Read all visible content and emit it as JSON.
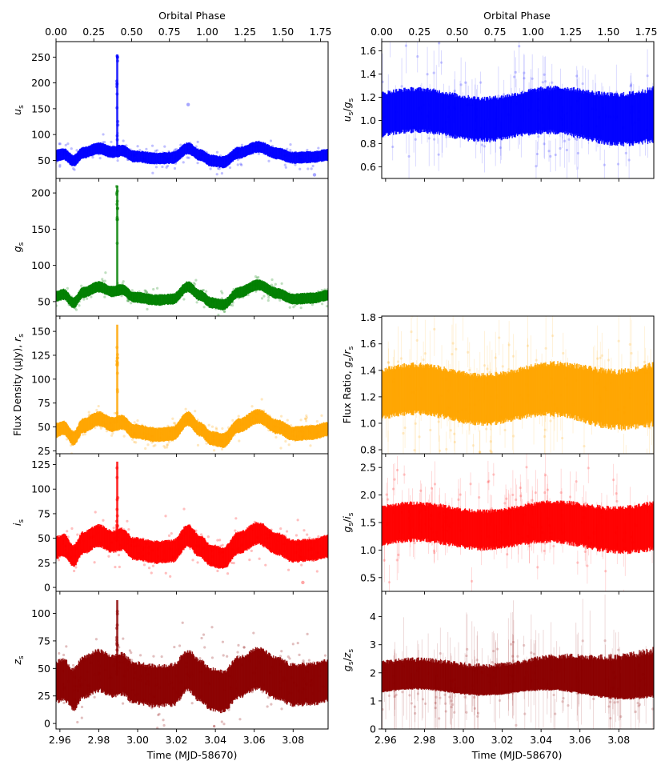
{
  "chart_data": {
    "type": "scatter",
    "x_label": "Time (MJD-58670)",
    "top_x_label": "Orbital Phase",
    "x_ticks": [
      "2.96",
      "2.98",
      "3.00",
      "3.02",
      "3.04",
      "3.06",
      "3.08"
    ],
    "xlim": [
      2.958,
      3.098
    ],
    "top_ticks": [
      "0.00",
      "0.25",
      "0.50",
      "0.75",
      "1.00",
      "1.25",
      "1.50",
      "1.75"
    ],
    "top_xlim": [
      0.0,
      1.8
    ],
    "shared_ylabel": "Flux Density (μJy), ",
    "flux_panels": [
      {
        "name": "u_s",
        "label_main": "u",
        "label_sub": "s",
        "color": "#0000ff",
        "ylim": [
          15,
          280
        ],
        "yticks": [
          50,
          100,
          150,
          200,
          250
        ],
        "baseline": 62,
        "amp": 14,
        "noise": 6,
        "flare_peak": 255,
        "outliers": [
          [
            3.026,
            158
          ],
          [
            3.091,
            22
          ]
        ]
      },
      {
        "name": "g_s",
        "label_main": "g",
        "label_sub": "s",
        "color": "#008000",
        "ylim": [
          30,
          220
        ],
        "yticks": [
          50,
          100,
          150,
          200
        ],
        "baseline": 60,
        "amp": 13,
        "noise": 4,
        "flare_peak": 210,
        "outliers": []
      },
      {
        "name": "r_s",
        "label_main": "r",
        "label_sub": "s",
        "color": "#ffa500",
        "ylim": [
          22,
          166
        ],
        "yticks": [
          25,
          50,
          75,
          100,
          125,
          150
        ],
        "baseline": 49,
        "amp": 12,
        "noise": 4,
        "flare_peak": 157,
        "outliers": []
      },
      {
        "name": "i_s",
        "label_main": "i",
        "label_sub": "s",
        "color": "#ff0000",
        "ylim": [
          -4,
          136
        ],
        "yticks": [
          0,
          25,
          50,
          75,
          100,
          125
        ],
        "baseline": 43,
        "amp": 12,
        "noise": 6,
        "flare_peak": 128,
        "outliers": [
          [
            3.085,
            5
          ]
        ]
      },
      {
        "name": "z_s",
        "label_main": "z",
        "label_sub": "s",
        "color": "#8b0000",
        "ylim": [
          -5,
          120
        ],
        "yticks": [
          0,
          25,
          50,
          75,
          100
        ],
        "baseline": 40,
        "amp": 10,
        "noise": 10,
        "flare_peak": 112,
        "outliers": []
      }
    ],
    "ratio_panels": [
      {
        "name": "u_s/g_s",
        "label_pre": "",
        "num_main": "u",
        "den_main": "g",
        "sub": "s",
        "color": "#0000ff",
        "ylim": [
          0.5,
          1.68
        ],
        "yticks": [
          "0.6",
          "0.8",
          "1.0",
          "1.2",
          "1.4",
          "1.6"
        ],
        "center": 1.05,
        "spread": 0.16
      },
      {
        "name": "g_s/r_s",
        "label_pre": "Flux Ratio, ",
        "num_main": "g",
        "den_main": "r",
        "sub": "s",
        "color": "#ffa500",
        "ylim": [
          0.77,
          1.81
        ],
        "yticks": [
          "0.8",
          "1.0",
          "1.2",
          "1.4",
          "1.6",
          "1.8"
        ],
        "center": 1.22,
        "spread": 0.16
      },
      {
        "name": "g_s/i_s",
        "label_pre": "",
        "num_main": "g",
        "den_main": "i",
        "sub": "s",
        "color": "#ff0000",
        "ylim": [
          0.25,
          2.75
        ],
        "yticks": [
          "0.5",
          "1.0",
          "1.5",
          "2.0",
          "2.5"
        ],
        "center": 1.44,
        "spread": 0.3
      },
      {
        "name": "g_s/z_s",
        "label_pre": "",
        "num_main": "g",
        "den_main": "z",
        "sub": "s",
        "color": "#8b0000",
        "ylim": [
          0,
          4.9
        ],
        "yticks": [
          "0",
          "1",
          "2",
          "3",
          "4"
        ],
        "center": 1.6,
        "spread": 0.45
      }
    ],
    "flare_time": 2.9895,
    "grid": false,
    "legend": "none"
  }
}
